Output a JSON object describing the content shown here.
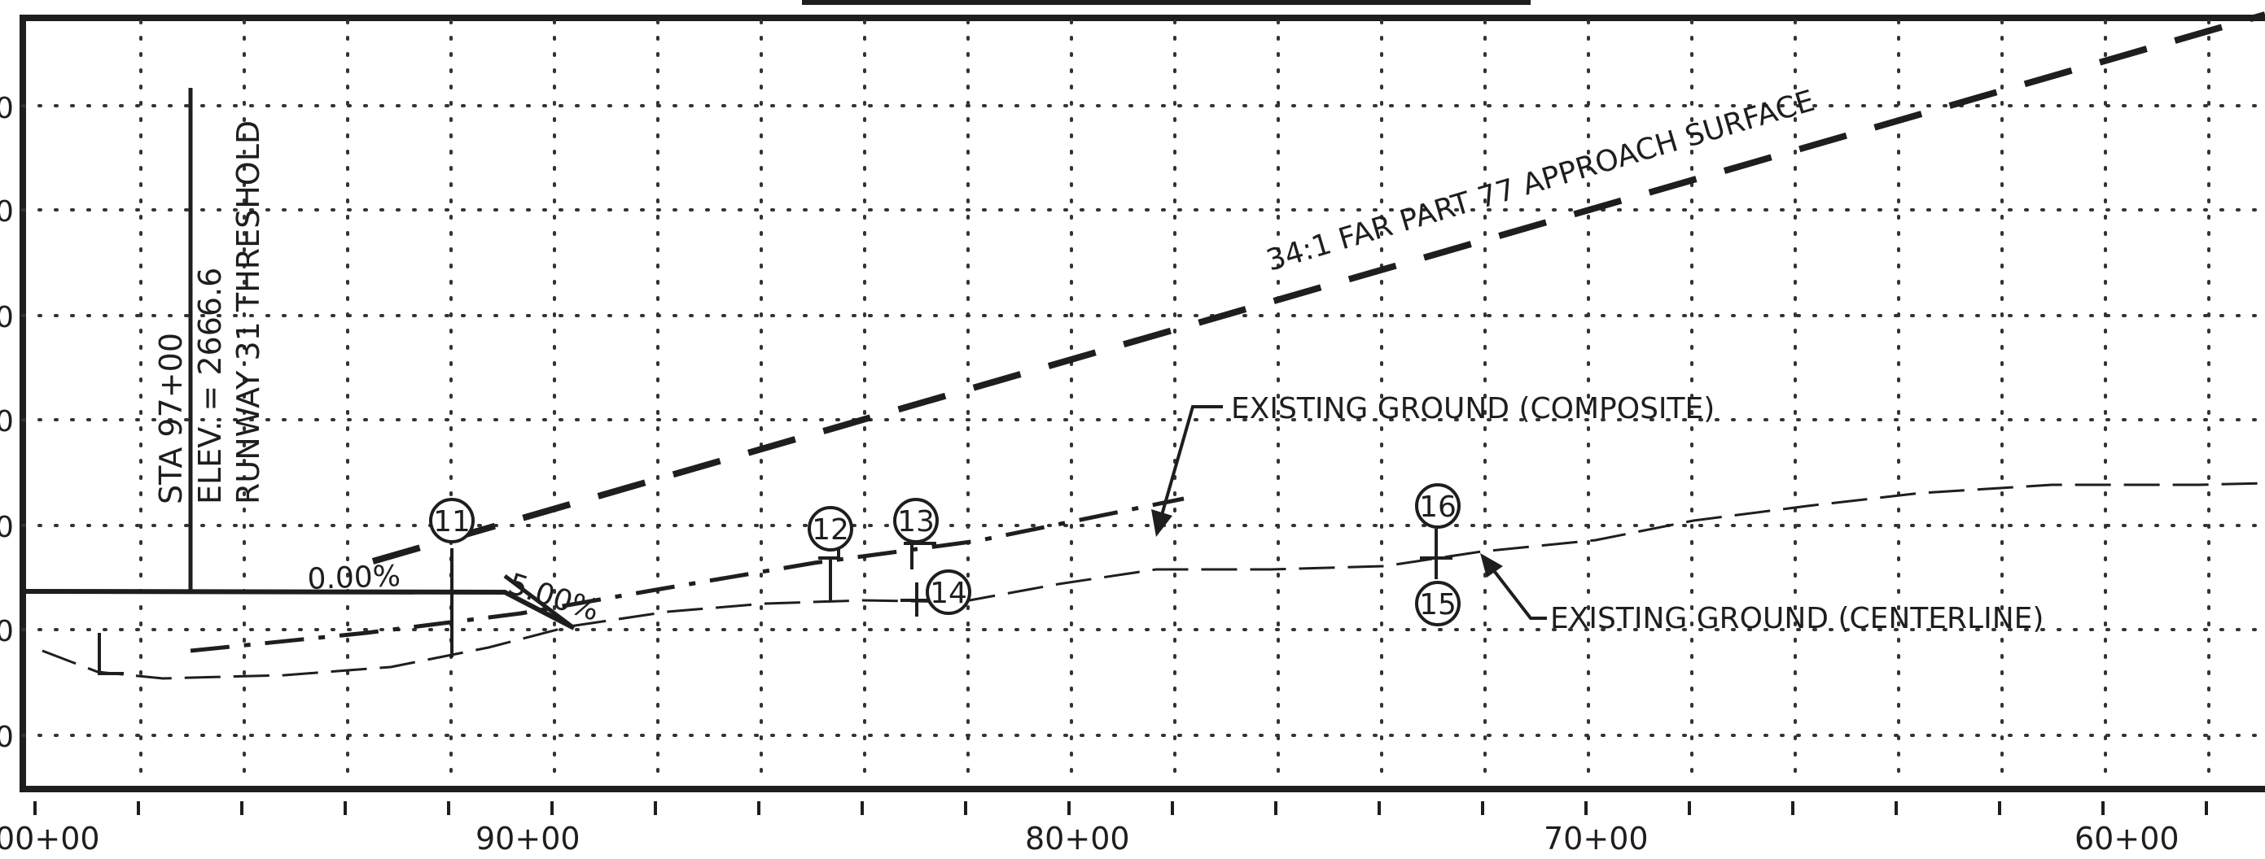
{
  "profile": {
    "station_labels": [
      "00+00",
      "90+00",
      "80+00",
      "70+00",
      "60+00"
    ],
    "threshold": {
      "station": "STA 97+00",
      "elevation": "ELEV. = 2666.6",
      "name": "RUNWAY 31 THRESHOLD"
    },
    "approach_surface_label": "34:1 FAR PART 77 APPROACH SURFACE",
    "grade_labels": [
      "0.00%",
      "5.00%"
    ],
    "ground_composite_label": "EXISTING GROUND (COMPOSITE)",
    "ground_centerline_label": "EXISTING GROUND (CENTERLINE)",
    "obstruction_markers": [
      "11",
      "12",
      "13",
      "14",
      "15",
      "16"
    ],
    "elevation_tick_fragments": [
      "0",
      "0",
      "0",
      "0",
      "0",
      "0",
      "0"
    ]
  }
}
